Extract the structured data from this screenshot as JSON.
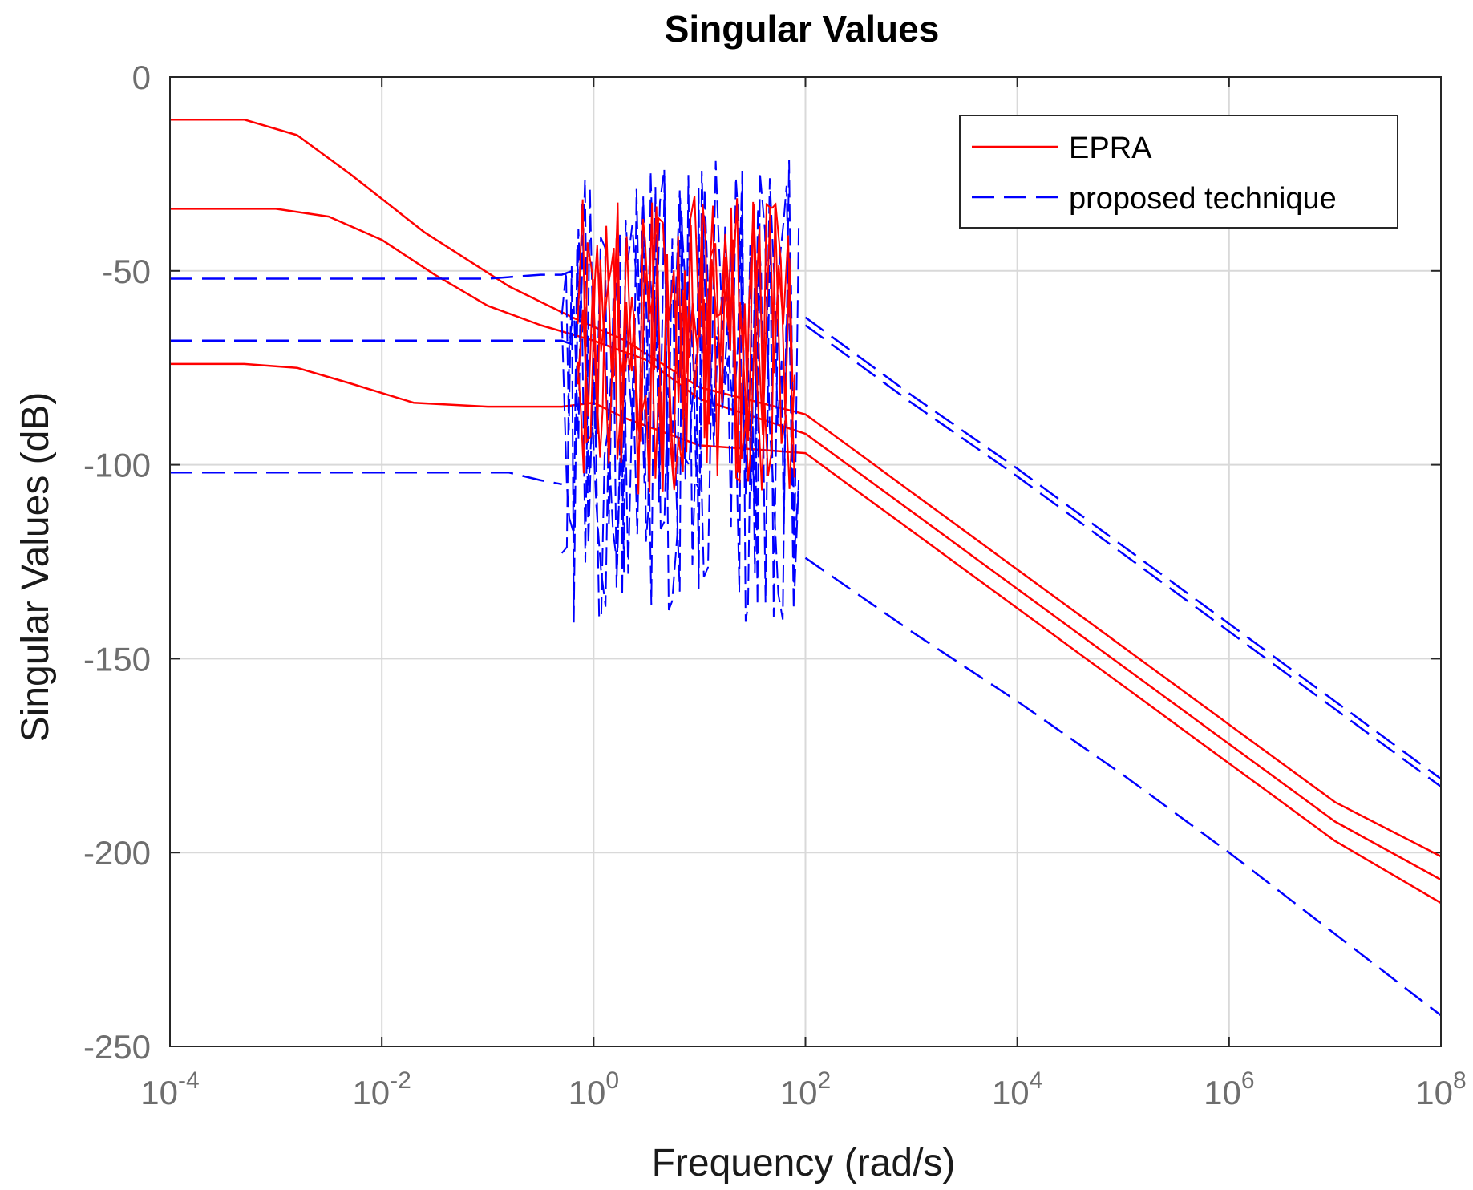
{
  "chart_data": {
    "type": "line",
    "title": "Singular Values",
    "xlabel": "Frequency (rad/s)",
    "ylabel": "Singular Values (dB)",
    "xscale": "log",
    "xlim_exp": [
      -4,
      8
    ],
    "ylim": [
      -250,
      0
    ],
    "grid": true,
    "legend_position": "top-right",
    "x_ticks": [
      {
        "base": "10",
        "exp": "-4"
      },
      {
        "base": "10",
        "exp": "-2"
      },
      {
        "base": "10",
        "exp": "0"
      },
      {
        "base": "10",
        "exp": "2"
      },
      {
        "base": "10",
        "exp": "4"
      },
      {
        "base": "10",
        "exp": "6"
      },
      {
        "base": "10",
        "exp": "8"
      }
    ],
    "y_ticks": [
      "0",
      "-50",
      "-100",
      "-150",
      "-200",
      "-250"
    ],
    "series": [
      {
        "name": "EPRA",
        "legend_label": "EPRA",
        "color": "#ff0000",
        "style": "solid",
        "curves": [
          {
            "log10_x": [
              -4,
              -3.3,
              -2.8,
              -2.3,
              -1.6,
              -0.8,
              -0.2,
              0.3,
              1.0,
              2.0,
              3.0,
              4.0,
              5.0,
              6.0,
              7.0,
              8.0
            ],
            "y": [
              -11,
              -11,
              -15,
              -25,
              -40,
              -54,
              -62,
              -68,
              -80,
              -87,
              -107,
              -127,
              -147,
              -167,
              -187,
              -201
            ]
          },
          {
            "log10_x": [
              -4,
              -3.0,
              -2.5,
              -2.0,
              -1.5,
              -1.0,
              -0.5,
              0.0,
              0.5,
              1.0,
              2.0,
              3.0,
              4.0,
              5.0,
              6.0,
              7.0,
              8.0
            ],
            "y": [
              -34,
              -34,
              -36,
              -42,
              -51,
              -59,
              -64,
              -68,
              -73,
              -83,
              -92,
              -112,
              -132,
              -152,
              -172,
              -192,
              -207
            ]
          },
          {
            "log10_x": [
              -4,
              -3.3,
              -2.8,
              -2.3,
              -1.7,
              -1.0,
              -0.3,
              0.0,
              0.3,
              1.0,
              2.0,
              3.0,
              4.0,
              5.0,
              6.0,
              7.0,
              8.0
            ],
            "y": [
              -74,
              -74,
              -75,
              -79,
              -84,
              -85,
              -85,
              -84,
              -88,
              -95,
              -97,
              -117,
              -137,
              -157,
              -177,
              -197,
              -213
            ]
          }
        ]
      },
      {
        "name": "proposed technique",
        "legend_label": "proposed technique",
        "color": "#0000ff",
        "style": "dashed",
        "curves": [
          {
            "log10_x": [
              -4,
              -2.0,
              -1.0,
              -0.5,
              -0.3,
              -0.2
            ],
            "y": [
              -52,
              -52,
              -52,
              -51,
              -51,
              -50
            ]
          },
          {
            "log10_x": [
              -4,
              -2.0,
              -1.0,
              -0.5,
              -0.3,
              -0.2
            ],
            "y": [
              -68,
              -68,
              -68,
              -68,
              -68,
              -69
            ]
          },
          {
            "log10_x": [
              -4,
              -2.0,
              -1.3,
              -0.8,
              -0.5,
              -0.3
            ],
            "y": [
              -102,
              -102,
              -102,
              -102,
              -104,
              -105
            ]
          },
          {
            "log10_x": [
              2.0,
              3.0,
              4.0,
              5.0,
              6.0,
              7.0,
              8.0
            ],
            "y": [
              -62,
              -82,
              -101,
              -121,
              -141,
              -161,
              -181
            ]
          },
          {
            "log10_x": [
              2.0,
              3.0,
              4.0,
              5.0,
              6.0,
              7.0,
              8.0
            ],
            "y": [
              -64,
              -84,
              -103,
              -123,
              -143,
              -163,
              -183
            ]
          },
          {
            "log10_x": [
              2.0,
              3.0,
              4.0,
              5.0,
              6.0,
              7.0,
              8.0
            ],
            "y": [
              -124,
              -143,
              -161,
              -180,
              -200,
              -221,
              -242
            ]
          }
        ]
      }
    ]
  }
}
